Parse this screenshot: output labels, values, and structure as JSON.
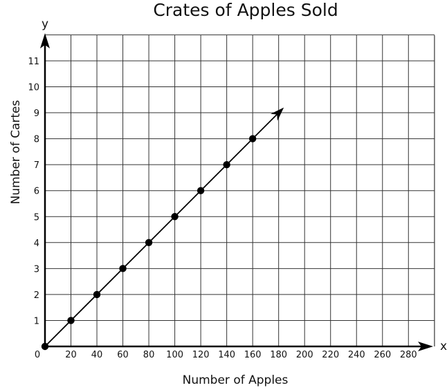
{
  "chart_data": {
    "type": "scatter",
    "title": "Crates of Apples Sold",
    "xlabel": "Number of Apples",
    "ylabel": "Number of Cartes",
    "x_axis_letter": "x",
    "y_axis_letter": "y",
    "origin_label": "0",
    "xlim": [
      0,
      300
    ],
    "ylim": [
      0,
      12
    ],
    "x_ticks": [
      20,
      40,
      60,
      80,
      100,
      120,
      140,
      160,
      180,
      200,
      220,
      240,
      260,
      280
    ],
    "y_ticks": [
      1,
      2,
      3,
      4,
      5,
      6,
      7,
      8,
      9,
      10,
      11
    ],
    "grid": true,
    "series": [
      {
        "points": [
          [
            0,
            0
          ],
          [
            20,
            1
          ],
          [
            40,
            2
          ],
          [
            60,
            3
          ],
          [
            80,
            4
          ],
          [
            100,
            5
          ],
          [
            120,
            6
          ],
          [
            140,
            7
          ],
          [
            160,
            8
          ]
        ],
        "line_to": [
          184,
          9.2
        ]
      }
    ]
  }
}
